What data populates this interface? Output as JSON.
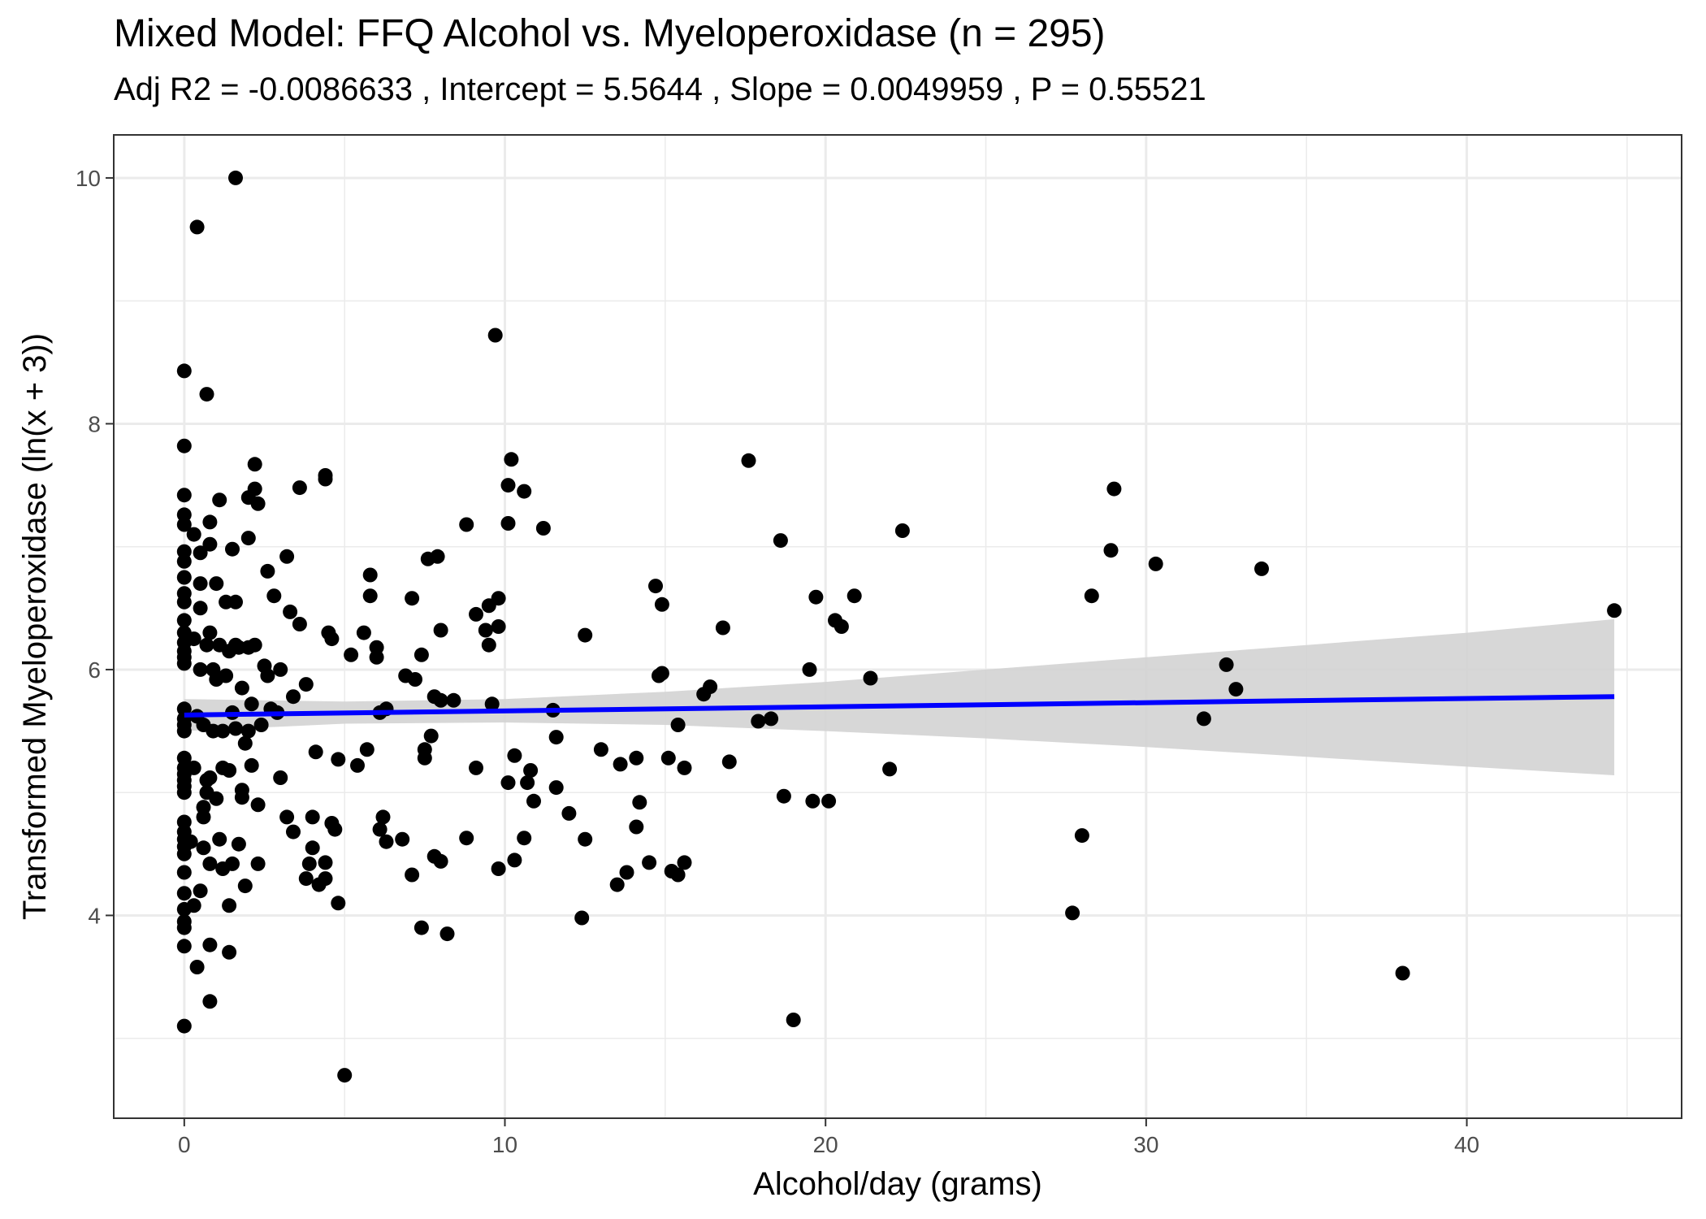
{
  "chart_data": {
    "type": "scatter",
    "title": "Mixed Model: FFQ Alcohol vs. Myeloperoxidase (n = 295)",
    "subtitle": "Adj R2 =  -0.0086633 , Intercept =  5.5644 , Slope =  0.0049959 , P =  0.55521",
    "xlabel": "Alcohol/day (grams)",
    "ylabel": "Transformed Myeloperoxidase (ln(x + 3))",
    "xlim": [
      -2.2,
      46.7
    ],
    "ylim": [
      2.35,
      10.35
    ],
    "x_ticks": [
      0,
      10,
      20,
      30,
      40
    ],
    "x_tick_labels": [
      "0",
      "10",
      "20",
      "30",
      "40"
    ],
    "y_ticks": [
      4,
      6,
      8,
      10
    ],
    "y_tick_labels": [
      "4",
      "6",
      "8",
      "10"
    ],
    "grid": true,
    "theme": "bw",
    "colors": {
      "points": "#000000",
      "fit_line": "#0000ff",
      "confidence_band": "#d3d3d3",
      "panel_border": "#333333",
      "grid": "#ebebeb"
    },
    "fit_line": {
      "x": [
        0,
        44.6
      ],
      "y": [
        5.63,
        5.78
      ]
    },
    "confidence_band": {
      "x": [
        0,
        5,
        10,
        15,
        20,
        25,
        30,
        35,
        40,
        44.6
      ],
      "upper": [
        5.76,
        5.74,
        5.76,
        5.82,
        5.9,
        6.0,
        6.1,
        6.2,
        6.3,
        6.41
      ],
      "lower": [
        5.5,
        5.56,
        5.57,
        5.55,
        5.5,
        5.44,
        5.37,
        5.29,
        5.21,
        5.14
      ]
    },
    "points": [
      [
        0,
        3.1
      ],
      [
        0,
        3.75
      ],
      [
        0,
        3.9
      ],
      [
        0,
        3.95
      ],
      [
        0,
        4.05
      ],
      [
        0,
        4.18
      ],
      [
        0,
        4.35
      ],
      [
        0,
        4.5
      ],
      [
        0,
        4.56
      ],
      [
        0,
        4.62
      ],
      [
        0,
        4.68
      ],
      [
        0,
        4.76
      ],
      [
        0,
        5.0
      ],
      [
        0,
        5.05
      ],
      [
        0,
        5.1
      ],
      [
        0,
        5.15
      ],
      [
        0,
        5.2
      ],
      [
        0,
        5.28
      ],
      [
        0,
        5.5
      ],
      [
        0,
        5.55
      ],
      [
        0,
        5.6
      ],
      [
        0,
        5.68
      ],
      [
        0,
        6.05
      ],
      [
        0,
        6.1
      ],
      [
        0,
        6.15
      ],
      [
        0,
        6.22
      ],
      [
        0,
        6.3
      ],
      [
        0,
        6.4
      ],
      [
        0,
        6.55
      ],
      [
        0,
        6.62
      ],
      [
        0,
        6.75
      ],
      [
        0,
        6.88
      ],
      [
        0,
        6.96
      ],
      [
        0,
        7.18
      ],
      [
        0,
        7.26
      ],
      [
        0,
        7.42
      ],
      [
        0,
        7.82
      ],
      [
        0,
        8.43
      ],
      [
        0.2,
        4.6
      ],
      [
        0.3,
        4.08
      ],
      [
        0.3,
        5.2
      ],
      [
        0.3,
        6.25
      ],
      [
        0.3,
        7.1
      ],
      [
        0.4,
        3.58
      ],
      [
        0.4,
        9.6
      ],
      [
        0.4,
        5.62
      ],
      [
        0.5,
        4.2
      ],
      [
        0.5,
        6.0
      ],
      [
        0.5,
        6.7
      ],
      [
        0.5,
        6.95
      ],
      [
        0.5,
        6.5
      ],
      [
        0.6,
        4.8
      ],
      [
        0.6,
        4.88
      ],
      [
        0.6,
        5.55
      ],
      [
        0.6,
        4.55
      ],
      [
        0.7,
        5.1
      ],
      [
        0.7,
        8.24
      ],
      [
        0.7,
        6.2
      ],
      [
        0.7,
        5.0
      ],
      [
        0.8,
        3.3
      ],
      [
        0.8,
        3.76
      ],
      [
        0.8,
        4.42
      ],
      [
        0.8,
        5.12
      ],
      [
        0.8,
        6.3
      ],
      [
        0.8,
        7.02
      ],
      [
        0.8,
        7.2
      ],
      [
        0.9,
        5.5
      ],
      [
        0.9,
        6.0
      ],
      [
        1.0,
        6.7
      ],
      [
        1.0,
        5.92
      ],
      [
        1.0,
        4.95
      ],
      [
        1.1,
        4.62
      ],
      [
        1.1,
        7.38
      ],
      [
        1.1,
        6.2
      ],
      [
        1.2,
        5.5
      ],
      [
        1.2,
        4.38
      ],
      [
        1.2,
        5.2
      ],
      [
        1.3,
        6.55
      ],
      [
        1.3,
        5.95
      ],
      [
        1.4,
        4.08
      ],
      [
        1.4,
        5.18
      ],
      [
        1.4,
        6.15
      ],
      [
        1.4,
        3.7
      ],
      [
        1.5,
        6.98
      ],
      [
        1.5,
        4.42
      ],
      [
        1.5,
        5.65
      ],
      [
        1.6,
        10.0
      ],
      [
        1.6,
        5.52
      ],
      [
        1.6,
        6.2
      ],
      [
        1.6,
        6.55
      ],
      [
        1.7,
        4.58
      ],
      [
        1.7,
        6.18
      ],
      [
        1.8,
        5.85
      ],
      [
        1.8,
        5.02
      ],
      [
        1.8,
        4.96
      ],
      [
        1.9,
        4.24
      ],
      [
        1.9,
        5.4
      ],
      [
        2.0,
        7.07
      ],
      [
        2.0,
        6.18
      ],
      [
        2.0,
        5.5
      ],
      [
        2.0,
        7.4
      ],
      [
        2.1,
        5.22
      ],
      [
        2.1,
        5.72
      ],
      [
        2.2,
        7.67
      ],
      [
        2.2,
        7.47
      ],
      [
        2.2,
        6.2
      ],
      [
        2.3,
        4.42
      ],
      [
        2.3,
        4.9
      ],
      [
        2.3,
        7.35
      ],
      [
        2.4,
        5.55
      ],
      [
        2.5,
        6.03
      ],
      [
        2.6,
        5.95
      ],
      [
        2.6,
        6.8
      ],
      [
        2.7,
        5.68
      ],
      [
        2.8,
        6.6
      ],
      [
        2.9,
        5.65
      ],
      [
        3.0,
        5.12
      ],
      [
        3.0,
        6.0
      ],
      [
        3.2,
        6.92
      ],
      [
        3.2,
        4.8
      ],
      [
        3.3,
        6.47
      ],
      [
        3.4,
        5.78
      ],
      [
        3.4,
        4.68
      ],
      [
        3.6,
        7.48
      ],
      [
        3.6,
        6.37
      ],
      [
        3.8,
        5.88
      ],
      [
        3.8,
        4.3
      ],
      [
        3.9,
        4.42
      ],
      [
        4.0,
        4.8
      ],
      [
        4.0,
        4.55
      ],
      [
        4.1,
        5.33
      ],
      [
        4.2,
        4.25
      ],
      [
        4.4,
        7.55
      ],
      [
        4.4,
        7.58
      ],
      [
        4.4,
        4.3
      ],
      [
        4.4,
        4.43
      ],
      [
        4.5,
        6.3
      ],
      [
        4.6,
        6.25
      ],
      [
        4.6,
        4.75
      ],
      [
        4.7,
        4.7
      ],
      [
        4.8,
        4.1
      ],
      [
        4.8,
        5.27
      ],
      [
        5.0,
        2.7
      ],
      [
        5.2,
        6.12
      ],
      [
        5.4,
        5.22
      ],
      [
        5.6,
        6.3
      ],
      [
        5.7,
        5.35
      ],
      [
        5.8,
        6.77
      ],
      [
        5.8,
        6.6
      ],
      [
        6.0,
        6.18
      ],
      [
        6.0,
        6.1
      ],
      [
        6.1,
        5.65
      ],
      [
        6.1,
        4.7
      ],
      [
        6.2,
        4.8
      ],
      [
        6.3,
        5.68
      ],
      [
        6.3,
        4.6
      ],
      [
        6.8,
        4.62
      ],
      [
        6.9,
        5.95
      ],
      [
        7.1,
        6.58
      ],
      [
        7.1,
        4.33
      ],
      [
        7.2,
        5.92
      ],
      [
        7.4,
        6.12
      ],
      [
        7.4,
        3.9
      ],
      [
        7.5,
        5.28
      ],
      [
        7.5,
        5.35
      ],
      [
        7.6,
        6.9
      ],
      [
        7.7,
        5.46
      ],
      [
        7.8,
        4.48
      ],
      [
        7.8,
        5.78
      ],
      [
        7.9,
        6.92
      ],
      [
        8.0,
        6.32
      ],
      [
        8.0,
        5.75
      ],
      [
        8.0,
        4.44
      ],
      [
        8.2,
        3.85
      ],
      [
        8.4,
        5.75
      ],
      [
        8.8,
        4.63
      ],
      [
        8.8,
        7.18
      ],
      [
        9.1,
        6.45
      ],
      [
        9.1,
        5.2
      ],
      [
        9.4,
        6.32
      ],
      [
        9.5,
        6.2
      ],
      [
        9.5,
        6.52
      ],
      [
        9.6,
        5.72
      ],
      [
        9.7,
        8.72
      ],
      [
        9.8,
        6.58
      ],
      [
        9.8,
        4.38
      ],
      [
        9.8,
        6.35
      ],
      [
        10.1,
        5.08
      ],
      [
        10.1,
        7.19
      ],
      [
        10.1,
        7.5
      ],
      [
        10.2,
        7.71
      ],
      [
        10.3,
        5.3
      ],
      [
        10.3,
        4.45
      ],
      [
        10.6,
        7.45
      ],
      [
        10.6,
        4.63
      ],
      [
        10.7,
        5.08
      ],
      [
        10.8,
        5.18
      ],
      [
        10.9,
        4.93
      ],
      [
        11.2,
        7.15
      ],
      [
        11.5,
        5.67
      ],
      [
        11.6,
        5.45
      ],
      [
        11.6,
        5.04
      ],
      [
        12.0,
        4.83
      ],
      [
        12.4,
        3.98
      ],
      [
        12.5,
        6.28
      ],
      [
        12.5,
        4.62
      ],
      [
        13.0,
        5.35
      ],
      [
        13.5,
        4.25
      ],
      [
        13.6,
        5.23
      ],
      [
        13.8,
        4.35
      ],
      [
        14.1,
        4.72
      ],
      [
        14.1,
        5.28
      ],
      [
        14.2,
        4.92
      ],
      [
        14.5,
        4.43
      ],
      [
        14.7,
        6.68
      ],
      [
        14.8,
        5.95
      ],
      [
        14.9,
        5.97
      ],
      [
        14.9,
        6.53
      ],
      [
        15.1,
        5.28
      ],
      [
        15.2,
        4.36
      ],
      [
        15.4,
        5.55
      ],
      [
        15.4,
        4.33
      ],
      [
        15.6,
        4.43
      ],
      [
        15.6,
        5.2
      ],
      [
        16.2,
        5.8
      ],
      [
        16.4,
        5.86
      ],
      [
        16.8,
        6.34
      ],
      [
        17.0,
        5.25
      ],
      [
        17.6,
        7.7
      ],
      [
        17.9,
        5.58
      ],
      [
        18.3,
        5.6
      ],
      [
        18.6,
        7.05
      ],
      [
        18.7,
        4.97
      ],
      [
        19.0,
        3.15
      ],
      [
        19.5,
        6.0
      ],
      [
        19.6,
        4.93
      ],
      [
        19.7,
        6.59
      ],
      [
        20.1,
        4.93
      ],
      [
        20.3,
        6.4
      ],
      [
        20.5,
        6.35
      ],
      [
        20.9,
        6.6
      ],
      [
        21.4,
        5.93
      ],
      [
        22.0,
        5.19
      ],
      [
        22.4,
        7.13
      ],
      [
        27.7,
        4.02
      ],
      [
        28.0,
        4.65
      ],
      [
        28.3,
        6.6
      ],
      [
        28.9,
        6.97
      ],
      [
        29.0,
        7.47
      ],
      [
        30.3,
        6.86
      ],
      [
        31.8,
        5.6
      ],
      [
        32.5,
        6.04
      ],
      [
        32.8,
        5.84
      ],
      [
        33.6,
        6.82
      ],
      [
        38.0,
        3.53
      ],
      [
        44.6,
        6.48
      ]
    ]
  }
}
